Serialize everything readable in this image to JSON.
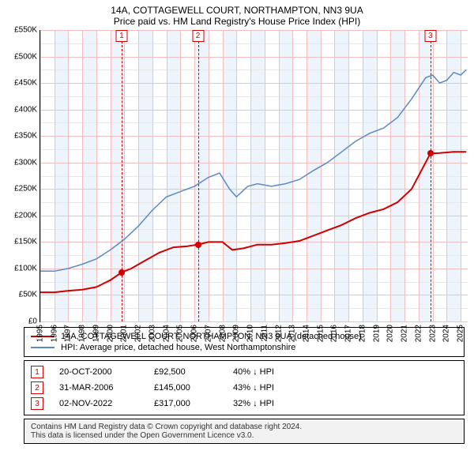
{
  "title": "14A, COTTAGEWELL COURT, NORTHAMPTON, NN3 9UA",
  "subtitle": "Price paid vs. HM Land Registry's House Price Index (HPI)",
  "chart": {
    "type": "line",
    "ylim": [
      0,
      550
    ],
    "ytick_step": 50,
    "yticks": [
      "£0",
      "£50K",
      "£100K",
      "£150K",
      "£200K",
      "£250K",
      "£300K",
      "£350K",
      "£400K",
      "£450K",
      "£500K",
      "£550K"
    ],
    "x_years": [
      1995,
      1996,
      1997,
      1998,
      1999,
      2000,
      2001,
      2002,
      2003,
      2004,
      2005,
      2006,
      2007,
      2008,
      2009,
      2010,
      2011,
      2012,
      2013,
      2014,
      2015,
      2016,
      2017,
      2018,
      2019,
      2020,
      2021,
      2022,
      2023,
      2024,
      2025
    ],
    "background_color": "#ffffff",
    "major_grid_color": "#f0c0c0",
    "minor_grid_color": "#e8e8e8",
    "year_band_color": "#eef4fb",
    "series": [
      {
        "name": "price_paid",
        "label": "14A, COTTAGEWELL COURT, NORTHAMPTON, NN3 9UA (detached house)",
        "color": "#d00000",
        "width": 2,
        "data_k": [
          [
            1995.0,
            55
          ],
          [
            1996.0,
            55
          ],
          [
            1997.0,
            58
          ],
          [
            1998.0,
            60
          ],
          [
            1999.0,
            65
          ],
          [
            2000.0,
            78
          ],
          [
            2000.8,
            92.5
          ],
          [
            2001.5,
            100
          ],
          [
            2002.5,
            115
          ],
          [
            2003.5,
            130
          ],
          [
            2004.5,
            140
          ],
          [
            2005.5,
            142
          ],
          [
            2006.25,
            145
          ],
          [
            2007.0,
            150
          ],
          [
            2008.0,
            150
          ],
          [
            2008.7,
            135
          ],
          [
            2009.5,
            138
          ],
          [
            2010.5,
            145
          ],
          [
            2011.5,
            145
          ],
          [
            2012.5,
            148
          ],
          [
            2013.5,
            152
          ],
          [
            2014.5,
            162
          ],
          [
            2015.5,
            172
          ],
          [
            2016.5,
            182
          ],
          [
            2017.5,
            195
          ],
          [
            2018.5,
            205
          ],
          [
            2019.5,
            212
          ],
          [
            2020.5,
            225
          ],
          [
            2021.5,
            250
          ],
          [
            2022.5,
            300
          ],
          [
            2022.84,
            317
          ],
          [
            2023.5,
            318
          ],
          [
            2024.5,
            320
          ],
          [
            2025.4,
            320
          ]
        ]
      },
      {
        "name": "hpi",
        "label": "HPI: Average price, detached house, West Northamptonshire",
        "color": "#5a8ac6",
        "width": 1.5,
        "data_k": [
          [
            1995.0,
            95
          ],
          [
            1996.0,
            95
          ],
          [
            1997.0,
            100
          ],
          [
            1998.0,
            108
          ],
          [
            1999.0,
            118
          ],
          [
            2000.0,
            135
          ],
          [
            2001.0,
            155
          ],
          [
            2002.0,
            180
          ],
          [
            2003.0,
            210
          ],
          [
            2004.0,
            235
          ],
          [
            2005.0,
            245
          ],
          [
            2006.0,
            255
          ],
          [
            2007.0,
            272
          ],
          [
            2007.8,
            280
          ],
          [
            2008.5,
            250
          ],
          [
            2009.0,
            235
          ],
          [
            2009.8,
            255
          ],
          [
            2010.5,
            260
          ],
          [
            2011.5,
            255
          ],
          [
            2012.5,
            260
          ],
          [
            2013.5,
            268
          ],
          [
            2014.5,
            285
          ],
          [
            2015.5,
            300
          ],
          [
            2016.5,
            320
          ],
          [
            2017.5,
            340
          ],
          [
            2018.5,
            355
          ],
          [
            2019.5,
            365
          ],
          [
            2020.5,
            385
          ],
          [
            2021.5,
            420
          ],
          [
            2022.5,
            460
          ],
          [
            2023.0,
            465
          ],
          [
            2023.5,
            450
          ],
          [
            2024.0,
            455
          ],
          [
            2024.5,
            470
          ],
          [
            2025.0,
            465
          ],
          [
            2025.4,
            475
          ]
        ]
      }
    ],
    "markers": [
      {
        "n": "1",
        "year": 2000.8,
        "price_k": 92.5
      },
      {
        "n": "2",
        "year": 2006.25,
        "price_k": 145
      },
      {
        "n": "3",
        "year": 2022.84,
        "price_k": 317
      }
    ]
  },
  "legend": {
    "rows": [
      {
        "color": "#d00000",
        "label": "14A, COTTAGEWELL COURT, NORTHAMPTON, NN3 9UA (detached house)"
      },
      {
        "color": "#5a8ac6",
        "label": "HPI: Average price, detached house, West Northamptonshire"
      }
    ]
  },
  "events": [
    {
      "n": "1",
      "date": "20-OCT-2000",
      "price": "£92,500",
      "delta": "40% ↓ HPI"
    },
    {
      "n": "2",
      "date": "31-MAR-2006",
      "price": "£145,000",
      "delta": "43% ↓ HPI"
    },
    {
      "n": "3",
      "date": "02-NOV-2022",
      "price": "£317,000",
      "delta": "32% ↓ HPI"
    }
  ],
  "attribution": {
    "line1": "Contains HM Land Registry data © Crown copyright and database right 2024.",
    "line2": "This data is licensed under the Open Government Licence v3.0."
  }
}
